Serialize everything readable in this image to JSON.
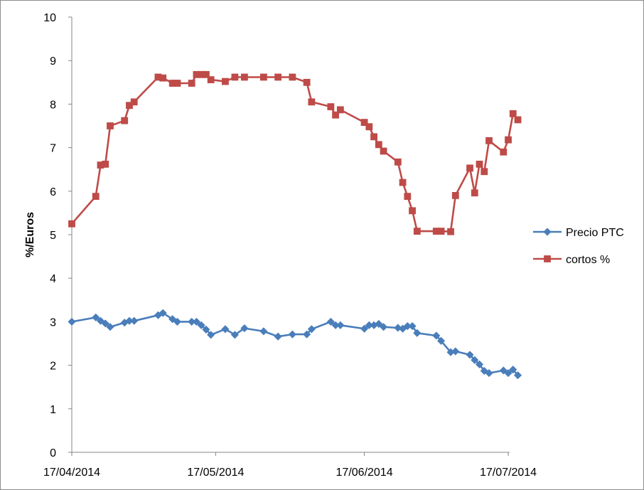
{
  "chart_data": {
    "type": "line",
    "title": "",
    "xlabel": "",
    "ylabel": "%/Euros",
    "ylim": [
      0,
      10
    ],
    "yticks": [
      "0",
      "1",
      "2",
      "3",
      "4",
      "5",
      "6",
      "7",
      "8",
      "9",
      "10"
    ],
    "xlim": [
      "2014-04-17",
      "2014-07-17"
    ],
    "xticks": [
      "17/04/2014",
      "17/05/2014",
      "17/06/2014",
      "17/07/2014"
    ],
    "grid": false,
    "legend": "right",
    "series": [
      {
        "name": "Precio PTC",
        "color": "#4a7ebb",
        "marker": "diamond",
        "points": [
          [
            "2014-04-17",
            3.0
          ],
          [
            "2014-04-22",
            3.1
          ],
          [
            "2014-04-23",
            3.02
          ],
          [
            "2014-04-24",
            2.96
          ],
          [
            "2014-04-25",
            2.88
          ],
          [
            "2014-04-28",
            2.98
          ],
          [
            "2014-04-29",
            3.02
          ],
          [
            "2014-04-30",
            3.02
          ],
          [
            "2014-05-05",
            3.15
          ],
          [
            "2014-05-06",
            3.2
          ],
          [
            "2014-05-08",
            3.06
          ],
          [
            "2014-05-09",
            3.0
          ],
          [
            "2014-05-12",
            3.0
          ],
          [
            "2014-05-13",
            3.0
          ],
          [
            "2014-05-14",
            2.92
          ],
          [
            "2014-05-15",
            2.82
          ],
          [
            "2014-05-16",
            2.7
          ],
          [
            "2014-05-19",
            2.83
          ],
          [
            "2014-05-21",
            2.7
          ],
          [
            "2014-05-23",
            2.85
          ],
          [
            "2014-05-27",
            2.78
          ],
          [
            "2014-05-30",
            2.66
          ],
          [
            "2014-06-02",
            2.71
          ],
          [
            "2014-06-05",
            2.71
          ],
          [
            "2014-06-06",
            2.83
          ],
          [
            "2014-06-10",
            3.0
          ],
          [
            "2014-06-11",
            2.92
          ],
          [
            "2014-06-12",
            2.92
          ],
          [
            "2014-06-17",
            2.84
          ],
          [
            "2014-06-18",
            2.92
          ],
          [
            "2014-06-19",
            2.92
          ],
          [
            "2014-06-20",
            2.95
          ],
          [
            "2014-06-21",
            2.88
          ],
          [
            "2014-06-24",
            2.86
          ],
          [
            "2014-06-25",
            2.84
          ],
          [
            "2014-06-26",
            2.9
          ],
          [
            "2014-06-27",
            2.9
          ],
          [
            "2014-06-28",
            2.74
          ],
          [
            "2014-07-02",
            2.68
          ],
          [
            "2014-07-03",
            2.56
          ],
          [
            "2014-07-05",
            2.3
          ],
          [
            "2014-07-06",
            2.32
          ],
          [
            "2014-07-09",
            2.24
          ],
          [
            "2014-07-10",
            2.12
          ],
          [
            "2014-07-11",
            2.02
          ],
          [
            "2014-07-12",
            1.87
          ],
          [
            "2014-07-13",
            1.82
          ],
          [
            "2014-07-16",
            1.88
          ],
          [
            "2014-07-17",
            1.82
          ],
          [
            "2014-07-18",
            1.9
          ],
          [
            "2014-07-19",
            1.77
          ]
        ]
      },
      {
        "name": "cortos %",
        "color": "#be4b48",
        "marker": "square",
        "points": [
          [
            "2014-04-17",
            5.25
          ],
          [
            "2014-04-22",
            5.88
          ],
          [
            "2014-04-23",
            6.6
          ],
          [
            "2014-04-24",
            6.62
          ],
          [
            "2014-04-25",
            7.5
          ],
          [
            "2014-04-28",
            7.62
          ],
          [
            "2014-04-29",
            7.97
          ],
          [
            "2014-04-30",
            8.05
          ],
          [
            "2014-05-05",
            8.62
          ],
          [
            "2014-05-06",
            8.6
          ],
          [
            "2014-05-08",
            8.48
          ],
          [
            "2014-05-09",
            8.48
          ],
          [
            "2014-05-12",
            8.48
          ],
          [
            "2014-05-13",
            8.68
          ],
          [
            "2014-05-14",
            8.68
          ],
          [
            "2014-05-15",
            8.68
          ],
          [
            "2014-05-16",
            8.56
          ],
          [
            "2014-05-19",
            8.52
          ],
          [
            "2014-05-21",
            8.62
          ],
          [
            "2014-05-23",
            8.62
          ],
          [
            "2014-05-27",
            8.62
          ],
          [
            "2014-05-30",
            8.62
          ],
          [
            "2014-06-02",
            8.62
          ],
          [
            "2014-06-05",
            8.5
          ],
          [
            "2014-06-06",
            8.05
          ],
          [
            "2014-06-10",
            7.94
          ],
          [
            "2014-06-11",
            7.75
          ],
          [
            "2014-06-12",
            7.87
          ],
          [
            "2014-06-17",
            7.58
          ],
          [
            "2014-06-18",
            7.48
          ],
          [
            "2014-06-19",
            7.25
          ],
          [
            "2014-06-20",
            7.07
          ],
          [
            "2014-06-21",
            6.92
          ],
          [
            "2014-06-24",
            6.67
          ],
          [
            "2014-06-25",
            6.2
          ],
          [
            "2014-06-26",
            5.88
          ],
          [
            "2014-06-27",
            5.55
          ],
          [
            "2014-06-28",
            5.08
          ],
          [
            "2014-07-02",
            5.08
          ],
          [
            "2014-07-03",
            5.08
          ],
          [
            "2014-07-05",
            5.07
          ],
          [
            "2014-07-06",
            5.9
          ],
          [
            "2014-07-09",
            6.53
          ],
          [
            "2014-07-10",
            5.96
          ],
          [
            "2014-07-11",
            6.62
          ],
          [
            "2014-07-12",
            6.45
          ],
          [
            "2014-07-13",
            7.16
          ],
          [
            "2014-07-16",
            6.9
          ],
          [
            "2014-07-17",
            7.18
          ],
          [
            "2014-07-18",
            7.78
          ],
          [
            "2014-07-19",
            7.64
          ]
        ]
      }
    ]
  }
}
